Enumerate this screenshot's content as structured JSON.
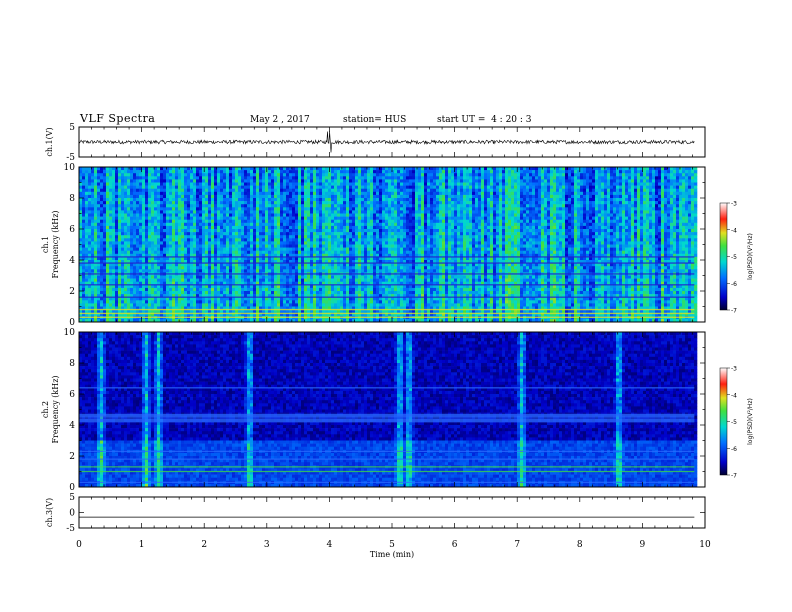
{
  "header": {
    "title": "VLF Spectra",
    "date": "May 2 , 2017",
    "station": "station= HUS",
    "start": "start UT =  4 : 20 : 3"
  },
  "chart_data": [
    {
      "id": "ch1-waveform",
      "type": "line",
      "ylabel": "ch.1(V)",
      "xlim": [
        0,
        10
      ],
      "ylim": [
        -5,
        5
      ],
      "yticks": [
        "5",
        "-5"
      ],
      "description_values": {
        "baseline": 0,
        "noise_amplitude": 0.6,
        "spike_times_min": [
          3.97,
          4.0,
          4.03
        ],
        "spike_amplitude": 3.5
      },
      "end_time_min": 9.83
    },
    {
      "id": "ch1-spectrogram",
      "type": "heatmap",
      "ylabel": "ch.1\nFrequency (kHz)",
      "ylabel_line1": "ch.1",
      "ylabel_line2": "Frequency (kHz)",
      "xlim": [
        0,
        10
      ],
      "ylim": [
        0,
        10
      ],
      "yticks": [
        "0",
        "2",
        "4",
        "6",
        "8",
        "10"
      ],
      "colorbar": {
        "label": "log(PSD)(V²/Hz)",
        "range": [
          -7,
          -3
        ],
        "ticks": [
          "-3",
          "-4",
          "-5",
          "-6",
          "-7"
        ]
      },
      "dominant_level": -5.5,
      "horizontal_lines_khz": [
        0.3,
        0.55,
        0.8,
        1.6,
        2.4,
        3.1,
        3.8,
        4.2
      ],
      "end_time_min": 9.83
    },
    {
      "id": "ch2-spectrogram",
      "type": "heatmap",
      "ylabel_line1": "ch.2",
      "ylabel_line2": "Frequency (kHz)",
      "xlim": [
        0,
        10
      ],
      "ylim": [
        0,
        10
      ],
      "yticks": [
        "0",
        "2",
        "4",
        "6",
        "8",
        "10"
      ],
      "colorbar": {
        "label": "log(PSD)(V²/Hz)",
        "range": [
          -7,
          -3
        ],
        "ticks": [
          "-3",
          "-4",
          "-5",
          "-6",
          "-7"
        ]
      },
      "bursts_min": [
        0.33,
        1.05,
        1.25,
        2.7,
        5.1,
        5.25,
        7.05,
        8.6
      ],
      "horizontal_bands_khz": [
        0.3,
        1.0,
        1.3,
        1.8,
        2.3,
        4.3,
        4.6,
        6.4
      ],
      "end_time_min": 9.83
    },
    {
      "id": "ch3-waveform",
      "type": "line",
      "ylabel": "ch.3(V)",
      "xlim": [
        0,
        10
      ],
      "ylim": [
        -5,
        5
      ],
      "yticks": [
        "5",
        "0",
        "-5"
      ],
      "baseline": -1.5,
      "end_time_min": 9.83
    }
  ],
  "x_axis": {
    "label": "Time (min)",
    "ticks": [
      "0",
      "1",
      "2",
      "3",
      "4",
      "5",
      "6",
      "7",
      "8",
      "9",
      "10"
    ]
  }
}
